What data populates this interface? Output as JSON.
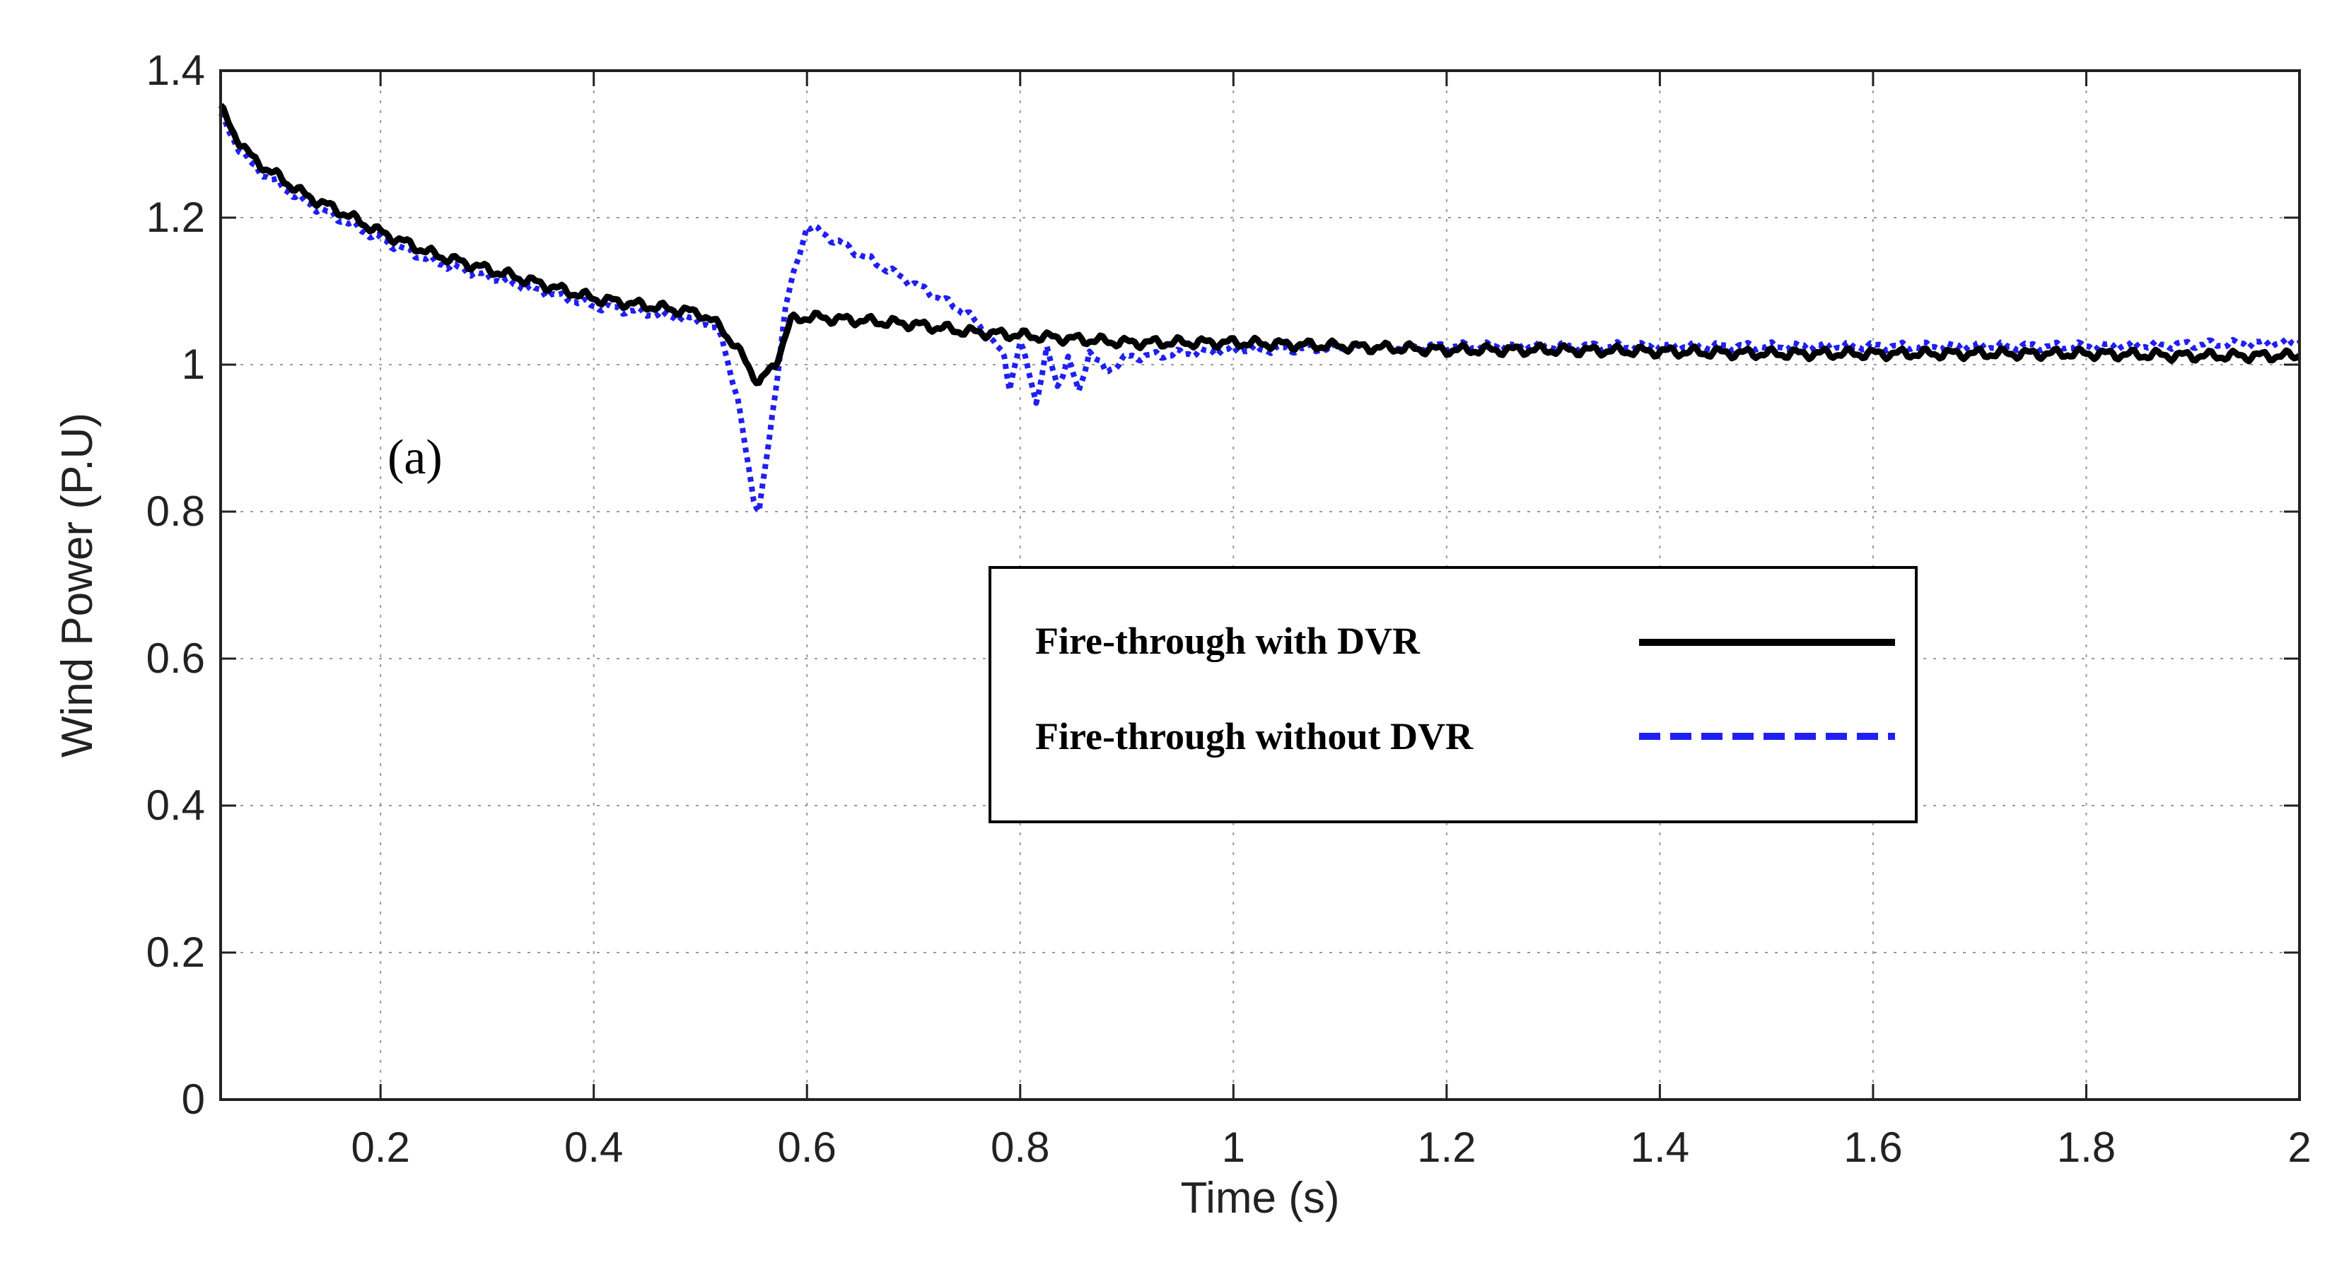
{
  "chart_data": {
    "type": "line",
    "title": "",
    "xlabel": "Time (s)",
    "ylabel": "Wind Power (P.U)",
    "xlim": [
      0.05,
      2
    ],
    "ylim": [
      0,
      1.4
    ],
    "grid": true,
    "x_ticks": [
      0.2,
      0.4,
      0.6,
      0.8,
      1,
      1.2,
      1.4,
      1.6,
      1.8,
      2
    ],
    "x_tick_labels": [
      "0.2",
      "0.4",
      "0.6",
      "0.8",
      "1",
      "1.2",
      "1.4",
      "1.6",
      "1.8",
      "2"
    ],
    "y_ticks": [
      0,
      0.2,
      0.4,
      0.6,
      0.8,
      1,
      1.2,
      1.4
    ],
    "y_tick_labels": [
      "0",
      "0.2",
      "0.4",
      "0.6",
      "0.8",
      "1",
      "1.2",
      "1.4"
    ],
    "annotation": "(a)",
    "legend_placement": "center-right",
    "series": [
      {
        "name": "Fire-through with DVR",
        "color": "#000000",
        "style": "solid",
        "x": [
          0.05,
          0.06,
          0.08,
          0.1,
          0.13,
          0.16,
          0.2,
          0.25,
          0.3,
          0.35,
          0.4,
          0.45,
          0.5,
          0.52,
          0.54,
          0.555,
          0.57,
          0.585,
          0.6,
          0.65,
          0.7,
          0.75,
          0.8,
          0.85,
          0.9,
          1.0,
          1.1,
          1.2,
          1.3,
          1.4,
          1.5,
          1.6,
          1.7,
          1.8,
          1.9,
          2.0
        ],
        "values": [
          1.35,
          1.32,
          1.28,
          1.26,
          1.23,
          1.21,
          1.18,
          1.15,
          1.13,
          1.11,
          1.09,
          1.08,
          1.07,
          1.05,
          1.01,
          0.975,
          1.0,
          1.06,
          1.065,
          1.06,
          1.055,
          1.045,
          1.04,
          1.035,
          1.03,
          1.03,
          1.025,
          1.02,
          1.02,
          1.018,
          1.015,
          1.015,
          1.015,
          1.015,
          1.012,
          1.012
        ]
      },
      {
        "name": "Fire-through without DVR",
        "color": "#1f1ff2",
        "style": "dotted",
        "x": [
          0.05,
          0.06,
          0.08,
          0.1,
          0.13,
          0.16,
          0.2,
          0.25,
          0.3,
          0.35,
          0.4,
          0.45,
          0.5,
          0.52,
          0.535,
          0.55,
          0.555,
          0.565,
          0.58,
          0.6,
          0.65,
          0.7,
          0.75,
          0.77,
          0.785,
          0.79,
          0.8,
          0.81,
          0.815,
          0.825,
          0.835,
          0.845,
          0.855,
          0.865,
          0.88,
          0.9,
          1.0,
          1.2,
          1.4,
          1.6,
          1.8,
          2.0
        ],
        "values": [
          1.34,
          1.31,
          1.27,
          1.25,
          1.22,
          1.2,
          1.17,
          1.14,
          1.12,
          1.1,
          1.08,
          1.07,
          1.06,
          1.04,
          0.95,
          0.82,
          0.8,
          0.9,
          1.08,
          1.19,
          1.15,
          1.11,
          1.07,
          1.04,
          1.01,
          0.97,
          1.03,
          0.98,
          0.95,
          1.02,
          0.97,
          1.01,
          0.96,
          1.02,
          0.99,
          1.01,
          1.02,
          1.025,
          1.025,
          1.025,
          1.025,
          1.03
        ]
      }
    ]
  }
}
